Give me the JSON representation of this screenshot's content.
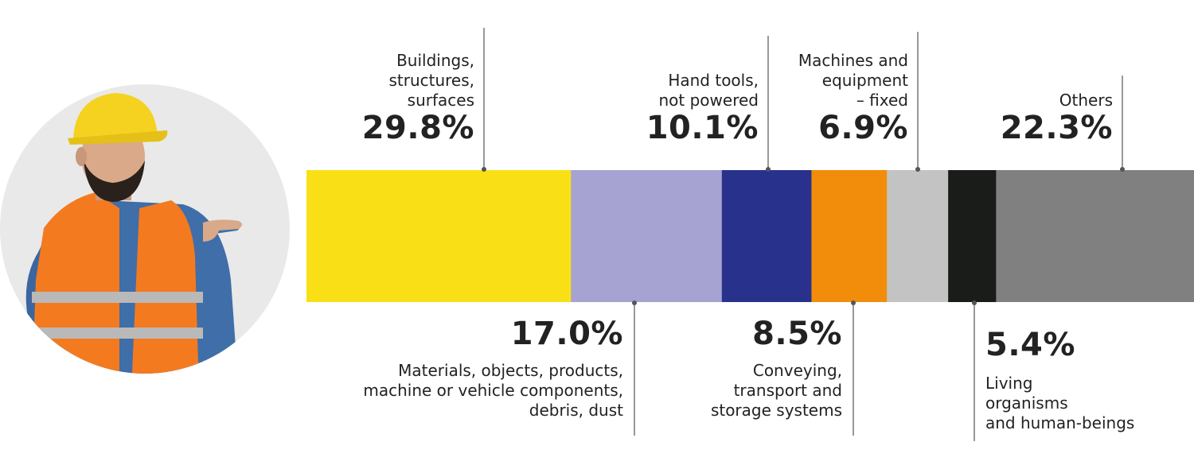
{
  "chart_data": {
    "type": "bar",
    "orientation": "horizontal-stacked",
    "title": "",
    "xlabel": "",
    "ylabel": "",
    "xlim": [
      0,
      100
    ],
    "unit": "%",
    "segments": [
      {
        "label": "Buildings,\nstructures,\nsurfaces",
        "value": 29.8,
        "display": "29.8%",
        "color": "#f9e016",
        "label_side": "top"
      },
      {
        "label": "Materials, objects, products,\nmachine or vehicle components,\ndebris, dust",
        "value": 17.0,
        "display": "17.0%",
        "color": "#a6a3d3",
        "label_side": "bottom"
      },
      {
        "label": "Hand tools,\nnot powered",
        "value": 10.1,
        "display": "10.1%",
        "color": "#28318c",
        "label_side": "top"
      },
      {
        "label": "Conveying,\ntransport and\nstorage systems",
        "value": 8.5,
        "display": "8.5%",
        "color": "#f28c0b",
        "label_side": "bottom"
      },
      {
        "label": "Machines and\nequipment\n– fixed",
        "value": 6.9,
        "display": "6.9%",
        "color": "#c3c3c3",
        "label_side": "top"
      },
      {
        "label": "Living\norganisms\nand human-beings",
        "value": 5.4,
        "display": "5.4%",
        "color": "#1a1c1a",
        "label_side": "bottom"
      },
      {
        "label": "Others",
        "value": 22.3,
        "display": "22.3%",
        "color": "#808080",
        "label_side": "top"
      }
    ]
  },
  "illustration": {
    "description_icon": "worker-pointing-icon",
    "colors": {
      "helmet": "#f4d21f",
      "vest": "#f47a20",
      "reflective": "#b9b9b9",
      "shirt": "#3f6ea8",
      "skin": "#d9a98a",
      "hair": "#2b211c",
      "circle": "#e9e9e9"
    }
  }
}
